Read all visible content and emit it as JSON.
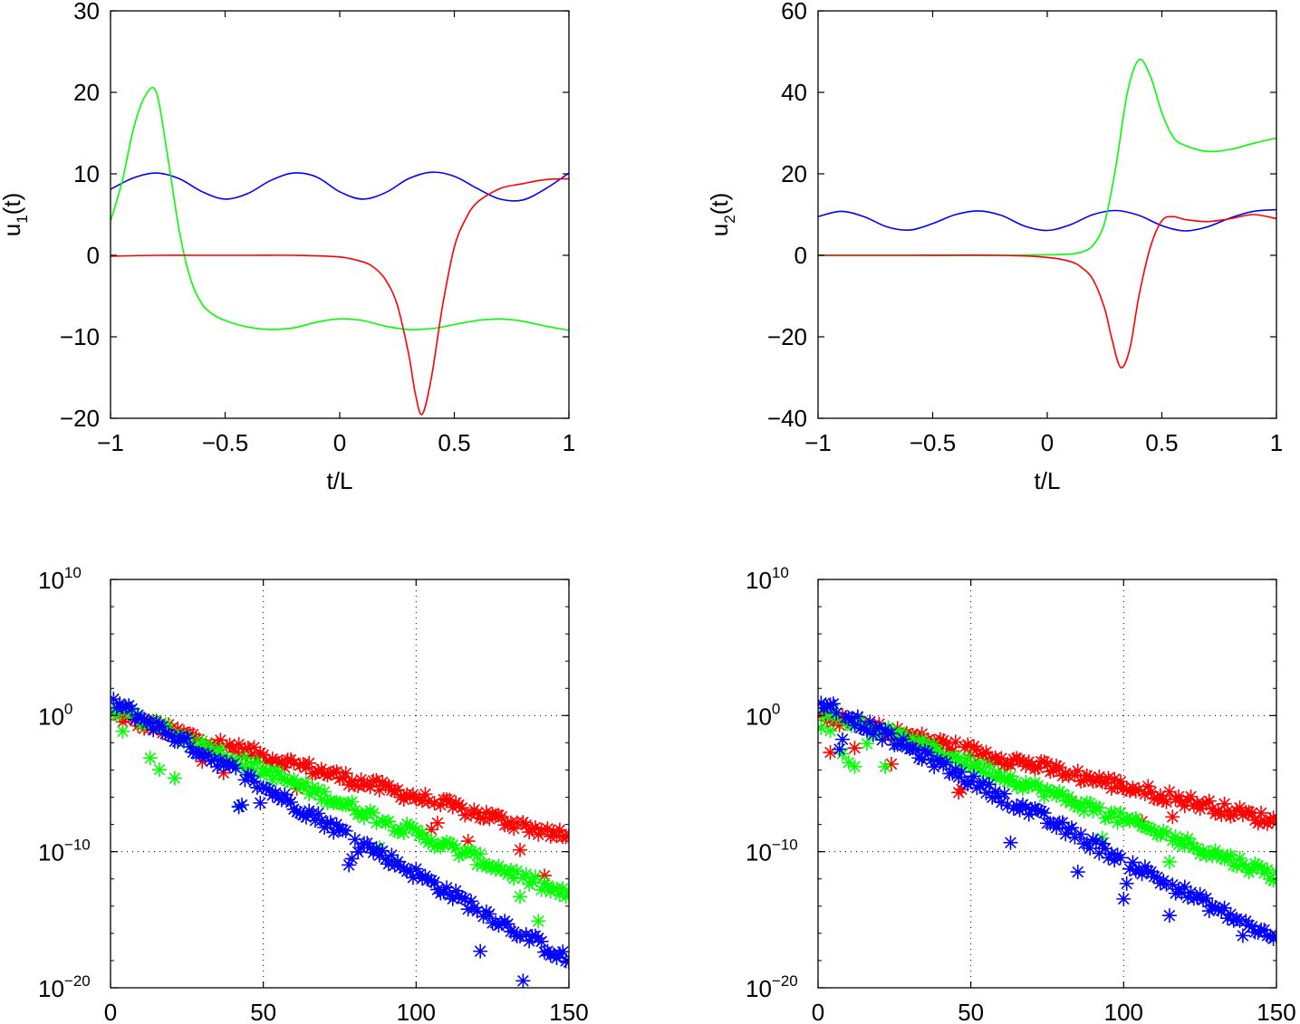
{
  "chart_data": [
    {
      "type": "line",
      "ylabel_base": "u",
      "ylabel_sub": "1",
      "ylabel_tail": "(t)",
      "xlabel": "t/L",
      "xlim": [
        -1,
        1
      ],
      "ylim": [
        -20,
        30
      ],
      "xticks": [
        -1,
        -0.5,
        0,
        0.5,
        1
      ],
      "xtick_labels": [
        "−1",
        "−0.5",
        "0",
        "0.5",
        "1"
      ],
      "yticks": [
        -20,
        -10,
        0,
        10,
        20,
        30
      ],
      "ytick_labels": [
        "−20",
        "−10",
        "0",
        "10",
        "20",
        "30"
      ],
      "grid": false,
      "series": [
        {
          "color": "#0000ff",
          "x": [
            -1,
            -0.9,
            -0.8,
            -0.7,
            -0.6,
            -0.5,
            -0.4,
            -0.3,
            -0.2,
            -0.1,
            0,
            0.1,
            0.2,
            0.3,
            0.4,
            0.5,
            0.6,
            0.7,
            0.8,
            0.9,
            1
          ],
          "y": [
            8.1,
            9.5,
            10.1,
            9.4,
            7.8,
            6.9,
            7.6,
            9.2,
            10.1,
            9.6,
            7.8,
            6.9,
            7.7,
            9.4,
            10.2,
            9.7,
            8.2,
            6.9,
            6.8,
            8.2,
            10.1
          ]
        },
        {
          "color": "#00ff00",
          "x": [
            -1,
            -0.95,
            -0.9,
            -0.85,
            -0.8,
            -0.75,
            -0.7,
            -0.65,
            -0.6,
            -0.55,
            -0.5,
            -0.4,
            -0.3,
            -0.2,
            -0.1,
            0,
            0.1,
            0.2,
            0.3,
            0.4,
            0.5,
            0.6,
            0.7,
            0.8,
            0.9,
            1
          ],
          "y": [
            4.2,
            9,
            15.5,
            19.5,
            20,
            12,
            3,
            -3,
            -6,
            -7.3,
            -8,
            -8.8,
            -9.1,
            -8.9,
            -8.2,
            -7.8,
            -8.0,
            -8.7,
            -9.1,
            -9.0,
            -8.5,
            -8.0,
            -7.8,
            -8.1,
            -8.7,
            -9.2
          ]
        },
        {
          "color": "#ff0000",
          "x": [
            -1,
            -0.8,
            -0.6,
            -0.4,
            -0.2,
            0,
            0.1,
            0.15,
            0.2,
            0.25,
            0.3,
            0.33,
            0.36,
            0.4,
            0.45,
            0.5,
            0.55,
            0.6,
            0.7,
            0.8,
            0.9,
            1
          ],
          "y": [
            -0.1,
            0,
            0,
            0,
            0,
            -0.2,
            -0.8,
            -1.5,
            -3,
            -6,
            -12,
            -17,
            -19.5,
            -15,
            -6,
            1,
            4.5,
            6.5,
            8.2,
            8.8,
            9.3,
            9.4
          ]
        }
      ]
    },
    {
      "type": "line",
      "ylabel_base": "u",
      "ylabel_sub": "2",
      "ylabel_tail": "(t)",
      "xlabel": "t/L",
      "xlim": [
        -1,
        1
      ],
      "ylim": [
        -40,
        60
      ],
      "xticks": [
        -1,
        -0.5,
        0,
        0.5,
        1
      ],
      "xtick_labels": [
        "−1",
        "−0.5",
        "0",
        "0.5",
        "1"
      ],
      "yticks": [
        -40,
        -20,
        0,
        20,
        40,
        60
      ],
      "ytick_labels": [
        "−40",
        "−20",
        "0",
        "20",
        "40",
        "60"
      ],
      "grid": false,
      "series": [
        {
          "color": "#0000ff",
          "x": [
            -1,
            -0.9,
            -0.8,
            -0.7,
            -0.6,
            -0.5,
            -0.4,
            -0.3,
            -0.2,
            -0.1,
            0,
            0.1,
            0.2,
            0.3,
            0.4,
            0.5,
            0.6,
            0.7,
            0.8,
            0.9,
            1
          ],
          "y": [
            9.5,
            10.8,
            9.5,
            7,
            6.2,
            7.8,
            10,
            10.9,
            9.8,
            7.2,
            6.1,
            7.5,
            10,
            11,
            9.8,
            7.3,
            6.0,
            7.0,
            9.2,
            10.8,
            11.2
          ]
        },
        {
          "color": "#00ff00",
          "x": [
            -1,
            -0.6,
            -0.2,
            0,
            0.1,
            0.15,
            0.2,
            0.25,
            0.3,
            0.35,
            0.4,
            0.45,
            0.5,
            0.55,
            0.6,
            0.7,
            0.8,
            0.9,
            1
          ],
          "y": [
            0,
            0,
            0,
            0.1,
            0.3,
            0.8,
            2.5,
            8,
            22,
            40,
            48,
            44,
            35,
            29,
            27,
            25.5,
            26,
            27.5,
            28.8
          ]
        },
        {
          "color": "#ff0000",
          "x": [
            -1,
            -0.6,
            -0.2,
            0,
            0.1,
            0.15,
            0.2,
            0.25,
            0.28,
            0.32,
            0.36,
            0.4,
            0.45,
            0.5,
            0.55,
            0.6,
            0.7,
            0.8,
            0.9,
            1
          ],
          "y": [
            0,
            0,
            0,
            -0.5,
            -1.5,
            -3,
            -6,
            -13,
            -20,
            -27.5,
            -23,
            -10,
            2,
            8.5,
            9.5,
            8.8,
            8.3,
            9.0,
            10,
            9
          ]
        }
      ]
    },
    {
      "type": "scatter",
      "xlim": [
        0,
        150
      ],
      "ylim_log10": [
        -20,
        10
      ],
      "yscale": "log",
      "xticks": [
        0,
        50,
        100,
        150
      ],
      "xtick_labels": [
        "0",
        "50",
        "100",
        "150"
      ],
      "yticks_log10": [
        -20,
        -10,
        0,
        10
      ],
      "ytick_labels": [
        {
          "base": "10",
          "exp": "−20"
        },
        {
          "base": "10",
          "exp": "−10"
        },
        {
          "base": "10",
          "exp": "0"
        },
        {
          "base": "10",
          "exp": "10"
        }
      ],
      "grid": true,
      "marker": "*",
      "series": [
        {
          "color": "#ff0000",
          "x_start": 1,
          "x_end": 150,
          "log10_start": 0.0,
          "log10_end": -9.0
        },
        {
          "color": "#00ff00",
          "x_start": 1,
          "x_end": 150,
          "log10_start": 0.5,
          "log10_end": -13.3
        },
        {
          "color": "#0000ff",
          "x_start": 1,
          "x_end": 150,
          "log10_start": 1.0,
          "log10_end": -18.0
        }
      ]
    },
    {
      "type": "scatter",
      "xlim": [
        0,
        150
      ],
      "ylim_log10": [
        -20,
        10
      ],
      "yscale": "log",
      "xticks": [
        0,
        50,
        100,
        150
      ],
      "xtick_labels": [
        "0",
        "50",
        "100",
        "150"
      ],
      "yticks_log10": [
        -20,
        -10,
        0,
        10
      ],
      "ytick_labels": [
        {
          "base": "10",
          "exp": "−20"
        },
        {
          "base": "10",
          "exp": "−10"
        },
        {
          "base": "10",
          "exp": "0"
        },
        {
          "base": "10",
          "exp": "10"
        }
      ],
      "grid": true,
      "marker": "*",
      "series": [
        {
          "color": "#ff0000",
          "x_start": 1,
          "x_end": 150,
          "log10_start": 0.0,
          "log10_end": -7.8
        },
        {
          "color": "#00ff00",
          "x_start": 1,
          "x_end": 150,
          "log10_start": 0.5,
          "log10_end": -11.8
        },
        {
          "color": "#0000ff",
          "x_start": 1,
          "x_end": 150,
          "log10_start": 1.0,
          "log10_end": -16.5
        }
      ]
    }
  ]
}
